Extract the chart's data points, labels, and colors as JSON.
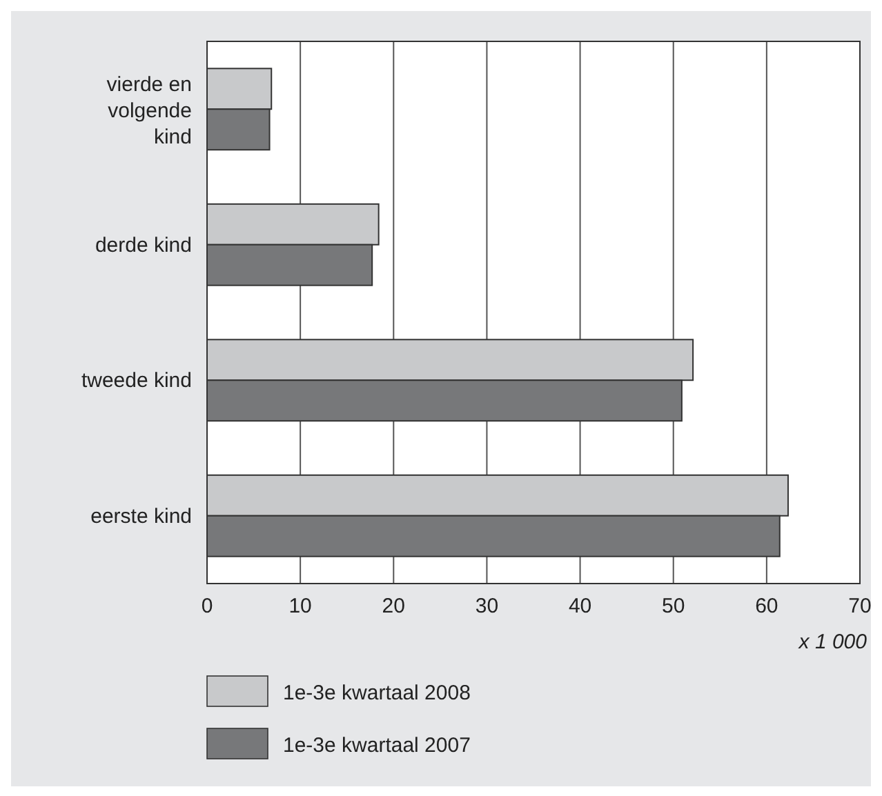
{
  "chart_data": {
    "type": "bar",
    "orientation": "horizontal",
    "categories": [
      "vierde en volgende kind",
      "derde kind",
      "tweede kind",
      "eerste kind"
    ],
    "series": [
      {
        "name": "1e-3e kwartaal 2008",
        "color": "#c8c9cb",
        "values": [
          6.9,
          18.4,
          52.1,
          62.3
        ]
      },
      {
        "name": "1e-3e kwartaal 2007",
        "color": "#77787a",
        "values": [
          6.7,
          17.7,
          50.9,
          61.4
        ]
      }
    ],
    "xlabel": "x 1 000",
    "xlim": [
      0,
      70
    ],
    "xticks": [
      0,
      10,
      20,
      30,
      40,
      50,
      60,
      70
    ],
    "grid": "x",
    "legend": "bottom"
  }
}
